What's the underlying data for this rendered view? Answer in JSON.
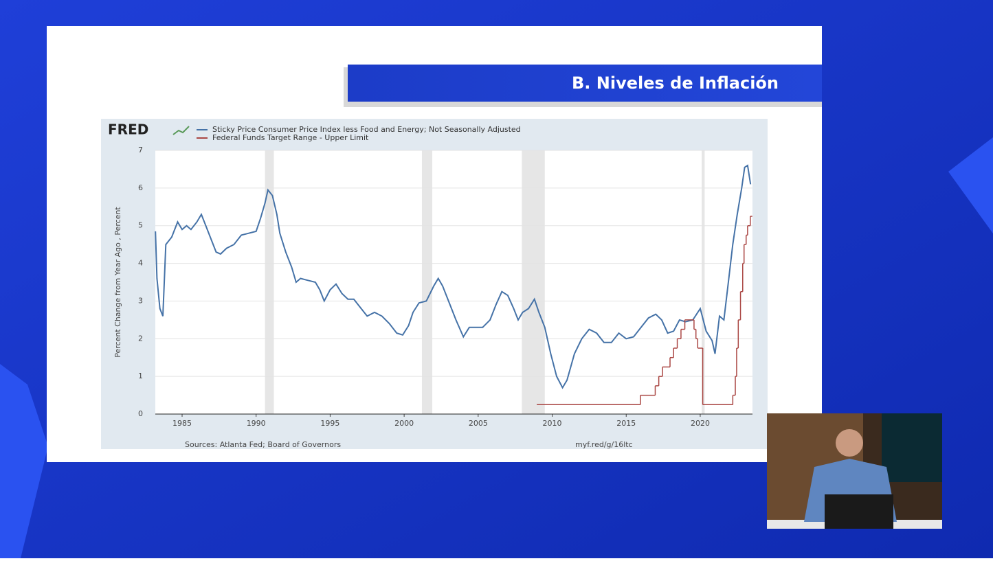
{
  "slide": {
    "title": "B. Niveles de Inflación"
  },
  "chart_data": {
    "type": "line",
    "logo": "FRED",
    "y_label": "Percent Change from Year Ago , Percent",
    "source": "Sources: Atlanta Fed; Board of Governors",
    "link": "myf.red/g/16ltc",
    "xlim": [
      1983.19,
      2023.53
    ],
    "xticks": [
      1985,
      1990,
      1995,
      2000,
      2005,
      2010,
      2015,
      2020
    ],
    "ylim": [
      0,
      7
    ],
    "yticks": [
      0,
      1,
      2,
      3,
      4,
      5,
      6,
      7
    ],
    "grid": true,
    "recessions": [
      [
        1990.6,
        1991.2
      ],
      [
        2001.2,
        2001.9
      ],
      [
        2007.95,
        2009.5
      ],
      [
        2020.1,
        2020.3
      ]
    ],
    "series": [
      {
        "name": "Sticky Price Consumer Price Index less Food and Energy; Not Seasonally Adjusted",
        "color": "#4572a7",
        "x": [
          1983.2,
          1983.3,
          1983.5,
          1983.7,
          1983.9,
          1984.3,
          1984.7,
          1985.0,
          1985.3,
          1985.6,
          1986.0,
          1986.3,
          1986.6,
          1987.0,
          1987.3,
          1987.6,
          1988.0,
          1988.5,
          1989.0,
          1989.5,
          1990.0,
          1990.3,
          1990.6,
          1990.8,
          1991.1,
          1991.4,
          1991.6,
          1992.0,
          1992.4,
          1992.7,
          1993.0,
          1993.5,
          1994.0,
          1994.3,
          1994.6,
          1995.0,
          1995.4,
          1995.8,
          1996.2,
          1996.6,
          1997.0,
          1997.5,
          1998.0,
          1998.5,
          1999.0,
          1999.5,
          1999.9,
          2000.3,
          2000.6,
          2001.0,
          2001.5,
          2002.0,
          2002.3,
          2002.6,
          2003.0,
          2003.5,
          2004.0,
          2004.4,
          2004.8,
          2005.3,
          2005.8,
          2006.2,
          2006.6,
          2007.0,
          2007.4,
          2007.7,
          2008.0,
          2008.4,
          2008.8,
          2009.1,
          2009.5,
          2009.9,
          2010.3,
          2010.7,
          2011.0,
          2011.5,
          2012.0,
          2012.5,
          2013.0,
          2013.5,
          2014.0,
          2014.5,
          2015.0,
          2015.5,
          2016.0,
          2016.5,
          2017.0,
          2017.4,
          2017.8,
          2018.2,
          2018.6,
          2019.0,
          2019.5,
          2020.0,
          2020.4,
          2020.8,
          2021.0,
          2021.3,
          2021.6,
          2021.9,
          2022.2,
          2022.5,
          2022.8,
          2023.0,
          2023.2,
          2023.4
        ],
        "values": [
          4.85,
          3.6,
          2.8,
          2.6,
          4.5,
          4.7,
          5.1,
          4.9,
          5.0,
          4.9,
          5.1,
          5.3,
          5.0,
          4.6,
          4.3,
          4.25,
          4.4,
          4.5,
          4.75,
          4.8,
          4.85,
          5.2,
          5.6,
          5.95,
          5.8,
          5.3,
          4.8,
          4.3,
          3.9,
          3.5,
          3.6,
          3.55,
          3.5,
          3.3,
          3.0,
          3.3,
          3.45,
          3.2,
          3.05,
          3.05,
          2.85,
          2.6,
          2.7,
          2.6,
          2.4,
          2.15,
          2.1,
          2.35,
          2.7,
          2.95,
          3.0,
          3.4,
          3.6,
          3.4,
          3.0,
          2.5,
          2.05,
          2.3,
          2.3,
          2.3,
          2.5,
          2.9,
          3.25,
          3.15,
          2.8,
          2.5,
          2.7,
          2.8,
          3.05,
          2.7,
          2.3,
          1.6,
          1.0,
          0.7,
          0.9,
          1.6,
          2.0,
          2.25,
          2.15,
          1.9,
          1.9,
          2.15,
          2.0,
          2.05,
          2.3,
          2.55,
          2.65,
          2.5,
          2.15,
          2.2,
          2.5,
          2.45,
          2.5,
          2.8,
          2.2,
          1.95,
          1.6,
          2.6,
          2.5,
          3.5,
          4.5,
          5.3,
          6.0,
          6.55,
          6.6,
          6.1
        ]
      },
      {
        "name": "Federal Funds Target Range - Upper Limit",
        "color": "#aa4643",
        "step": true,
        "x": [
          2008.96,
          2015.96,
          2016.96,
          2017.2,
          2017.45,
          2017.96,
          2018.2,
          2018.45,
          2018.7,
          2018.96,
          2019.58,
          2019.71,
          2019.83,
          2020.17,
          2022.2,
          2022.37,
          2022.46,
          2022.57,
          2022.72,
          2022.87,
          2022.96,
          2023.1,
          2023.2,
          2023.38
        ],
        "values": [
          0.25,
          0.5,
          0.75,
          1.0,
          1.25,
          1.5,
          1.75,
          2.0,
          2.25,
          2.5,
          2.25,
          2.0,
          1.75,
          0.25,
          0.5,
          1.0,
          1.75,
          2.5,
          3.25,
          4.0,
          4.5,
          4.75,
          5.0,
          5.25
        ]
      }
    ]
  }
}
